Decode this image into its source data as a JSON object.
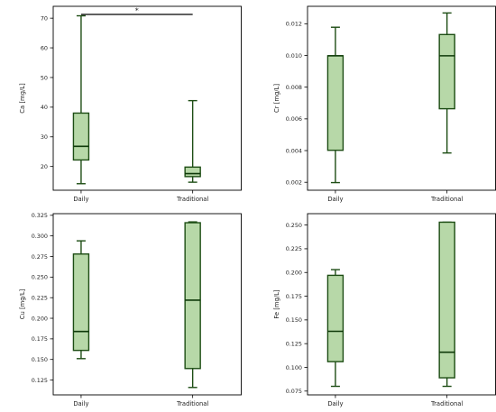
{
  "colors": {
    "box_fill": "#b7d8a8",
    "box_edge": "#1d4d14",
    "median": "#0f3a0a",
    "axes": "#000000"
  },
  "chart_data": [
    {
      "type": "box",
      "categories": [
        "Daily",
        "Traditional"
      ],
      "ylabel": "Ca [mg/L]",
      "ylim": [
        12,
        74
      ],
      "yticks": [
        20,
        30,
        40,
        50,
        60,
        70
      ],
      "ytick_labels": [
        "20",
        "30",
        "40",
        "50",
        "60",
        "70"
      ],
      "boxes": [
        {
          "min": 14.2,
          "q1": 22.2,
          "median": 26.8,
          "q3": 38.0,
          "max": 70.8
        },
        {
          "min": 14.7,
          "q1": 16.6,
          "median": 17.6,
          "q3": 19.8,
          "max": 42.2
        }
      ],
      "significance": {
        "from": 0,
        "to": 1,
        "label": "*"
      }
    },
    {
      "type": "box",
      "categories": [
        "Daily",
        "Traditional"
      ],
      "ylabel": "Cr [mg/L]",
      "ylim": [
        0.0015,
        0.0131
      ],
      "yticks": [
        0.002,
        0.004,
        0.006,
        0.008,
        0.01,
        0.012
      ],
      "ytick_labels": [
        "0.002",
        "0.004",
        "0.006",
        "0.008",
        "0.010",
        "0.012"
      ],
      "boxes": [
        {
          "min": 0.00198,
          "q1": 0.00402,
          "median": 0.00998,
          "q3": 0.00998,
          "max": 0.01178
        },
        {
          "min": 0.00385,
          "q1": 0.00664,
          "median": 0.00998,
          "q3": 0.01132,
          "max": 0.01268
        }
      ]
    },
    {
      "type": "box",
      "categories": [
        "Daily",
        "Traditional"
      ],
      "ylabel": "Cu [mg/L]",
      "ylim": [
        0.107,
        0.327
      ],
      "yticks": [
        0.125,
        0.15,
        0.175,
        0.2,
        0.225,
        0.25,
        0.275,
        0.3,
        0.325
      ],
      "ytick_labels": [
        "0.125",
        "0.150",
        "0.175",
        "0.200",
        "0.225",
        "0.250",
        "0.275",
        "0.300",
        "0.325"
      ],
      "boxes": [
        {
          "min": 0.151,
          "q1": 0.161,
          "median": 0.184,
          "q3": 0.278,
          "max": 0.294
        },
        {
          "min": 0.116,
          "q1": 0.139,
          "median": 0.222,
          "q3": 0.316,
          "max": 0.317
        }
      ]
    },
    {
      "type": "box",
      "categories": [
        "Daily",
        "Traditional"
      ],
      "ylabel": "Fe [mg/L]",
      "ylim": [
        0.071,
        0.262
      ],
      "yticks": [
        0.075,
        0.1,
        0.125,
        0.15,
        0.175,
        0.2,
        0.225,
        0.25
      ],
      "ytick_labels": [
        "0.075",
        "0.100",
        "0.125",
        "0.150",
        "0.175",
        "0.200",
        "0.225",
        "0.250"
      ],
      "boxes": [
        {
          "min": 0.08,
          "q1": 0.106,
          "median": 0.138,
          "q3": 0.197,
          "max": 0.203
        },
        {
          "min": 0.08,
          "q1": 0.089,
          "median": 0.116,
          "q3": 0.253,
          "max": 0.253
        }
      ]
    }
  ]
}
